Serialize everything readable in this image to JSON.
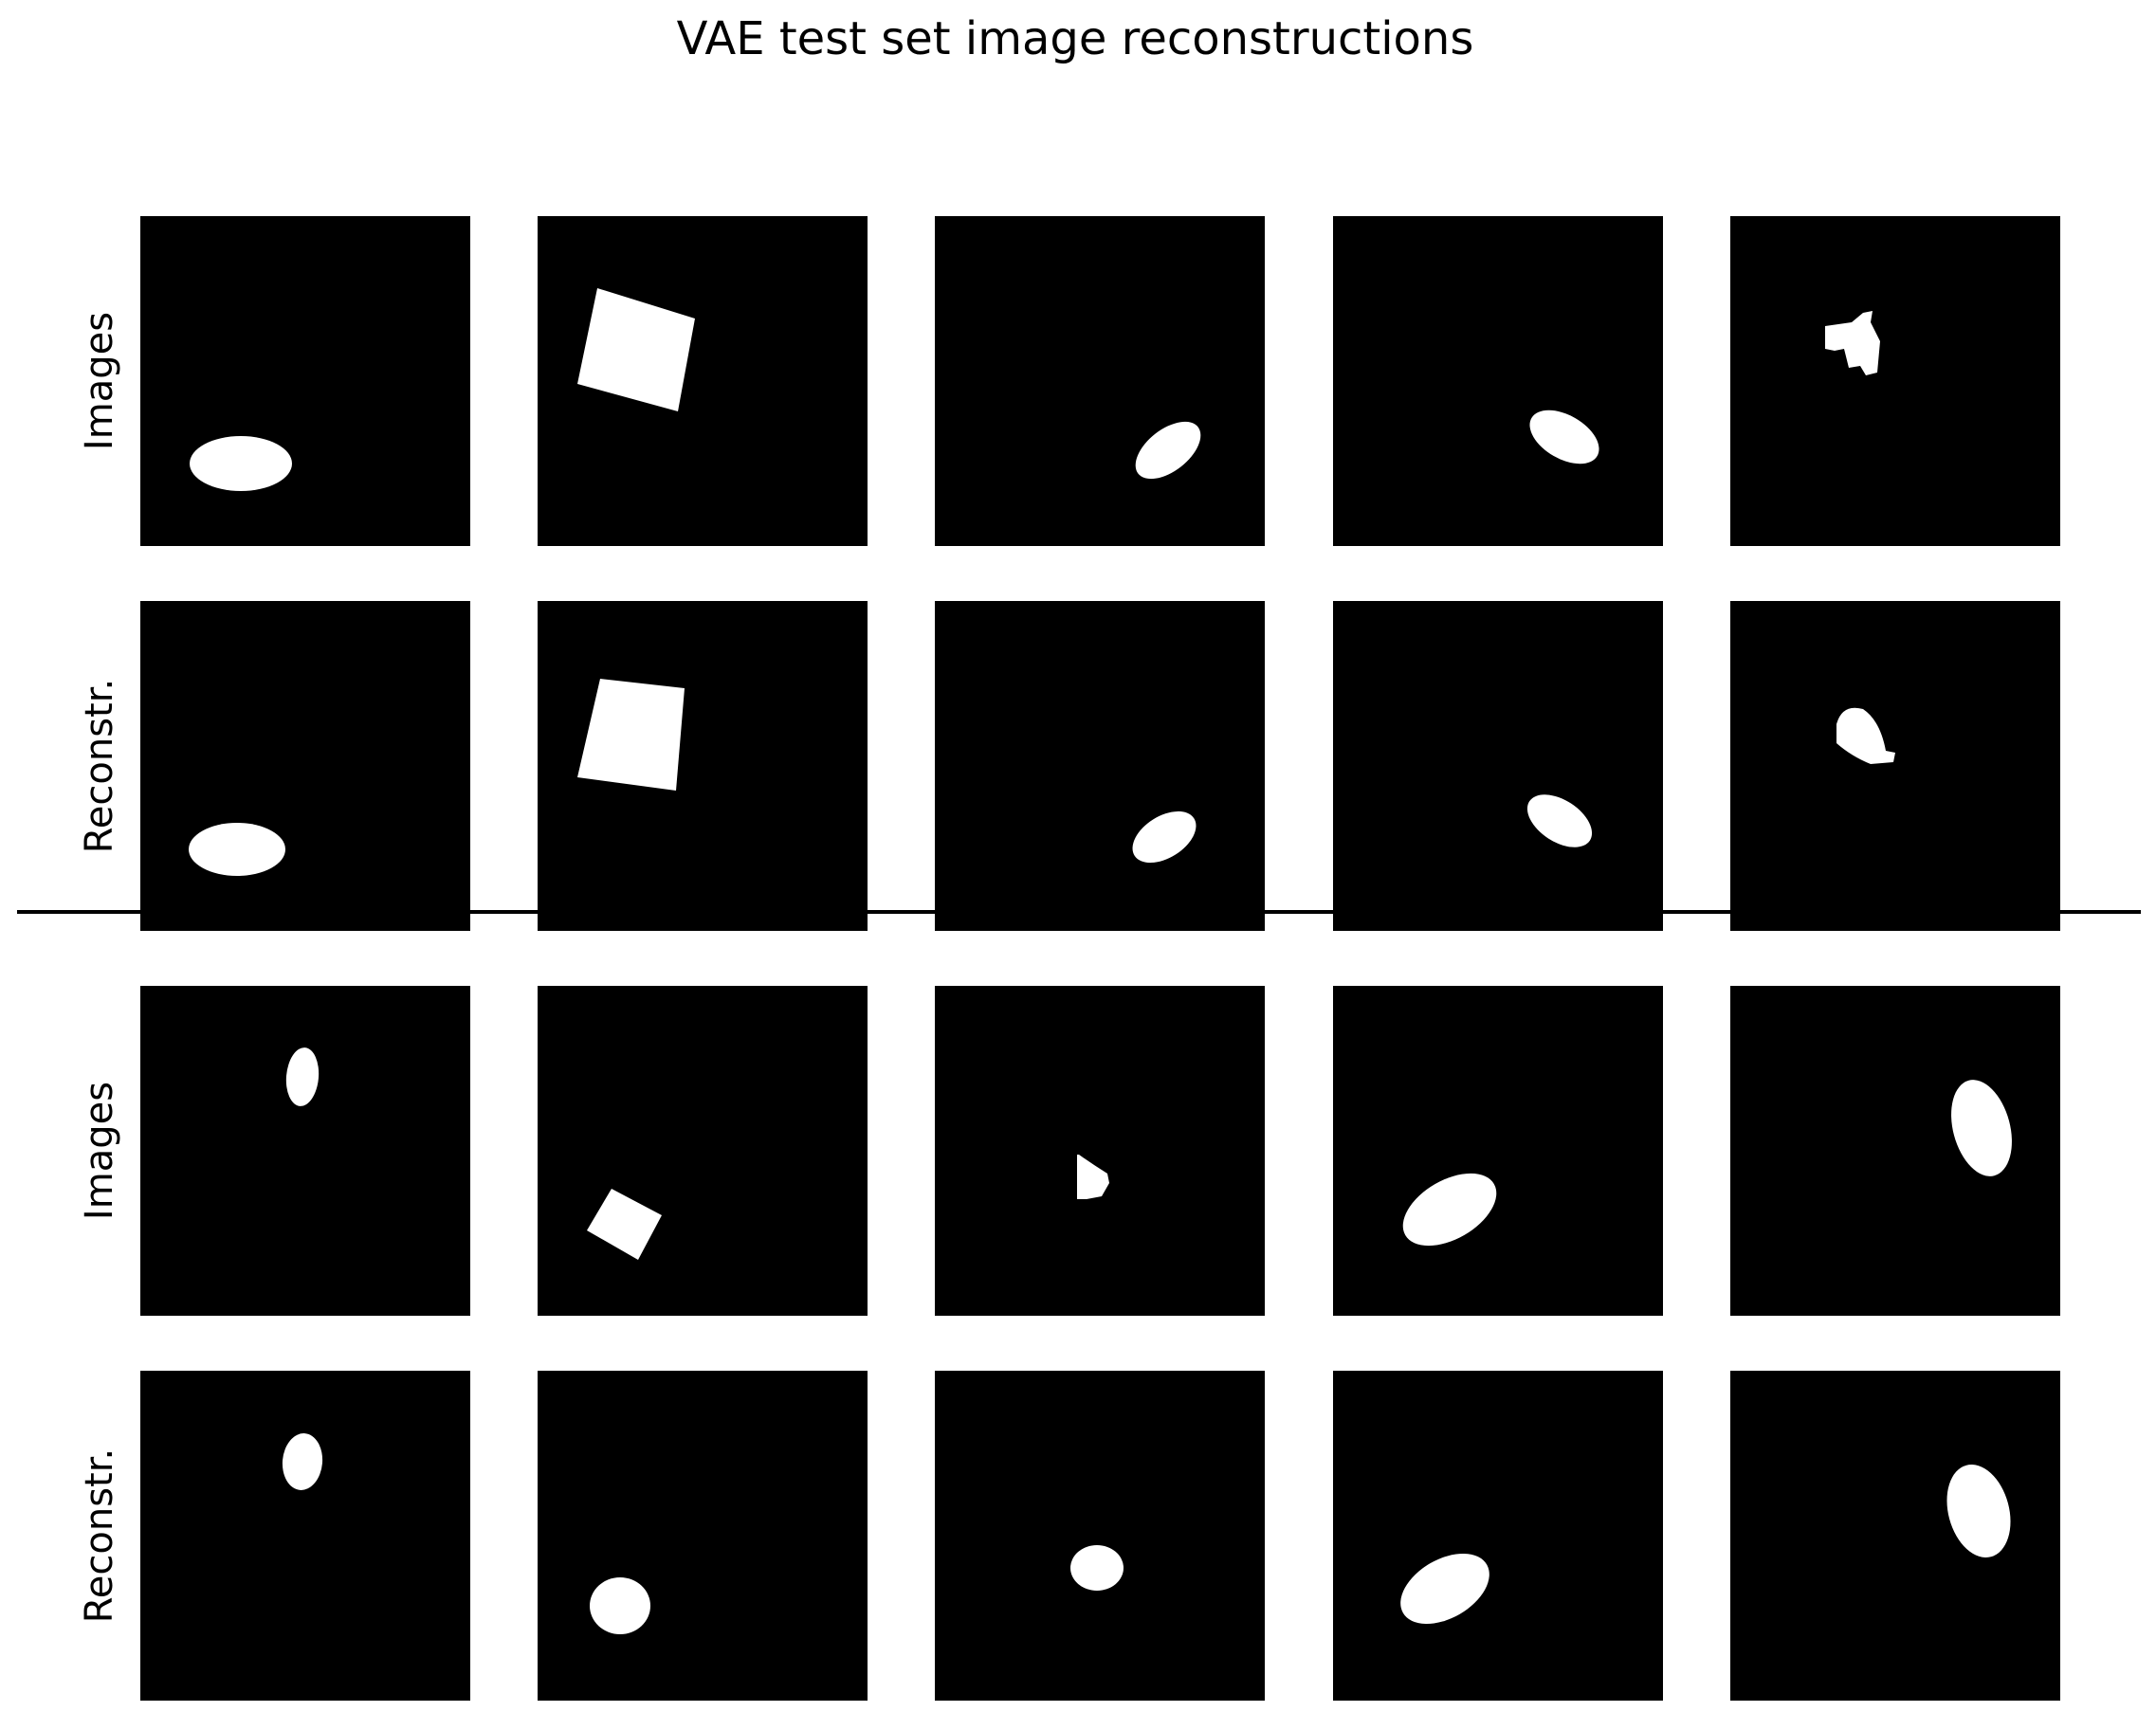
{
  "figure": {
    "title": "VAE test set image reconstructions",
    "groups": [
      {
        "row_labels": [
          "Images",
          "Reconstr."
        ],
        "panels": [
          {
            "image": "ellipse",
            "reconstruction": "ellipse"
          },
          {
            "image": "square",
            "reconstruction": "square"
          },
          {
            "image": "ellipse",
            "reconstruction": "ellipse"
          },
          {
            "image": "ellipse",
            "reconstruction": "ellipse"
          },
          {
            "image": "heart",
            "reconstruction": "blob"
          }
        ]
      },
      {
        "row_labels": [
          "Images",
          "Reconstr."
        ],
        "panels": [
          {
            "image": "ellipse",
            "reconstruction": "ellipse"
          },
          {
            "image": "square",
            "reconstruction": "blob"
          },
          {
            "image": "heart",
            "reconstruction": "blob"
          },
          {
            "image": "ellipse",
            "reconstruction": "ellipse"
          },
          {
            "image": "ellipse",
            "reconstruction": "ellipse"
          }
        ]
      }
    ],
    "colors": {
      "panel_background": "#000000",
      "shape": "#ffffff",
      "separator": "#000000"
    }
  }
}
